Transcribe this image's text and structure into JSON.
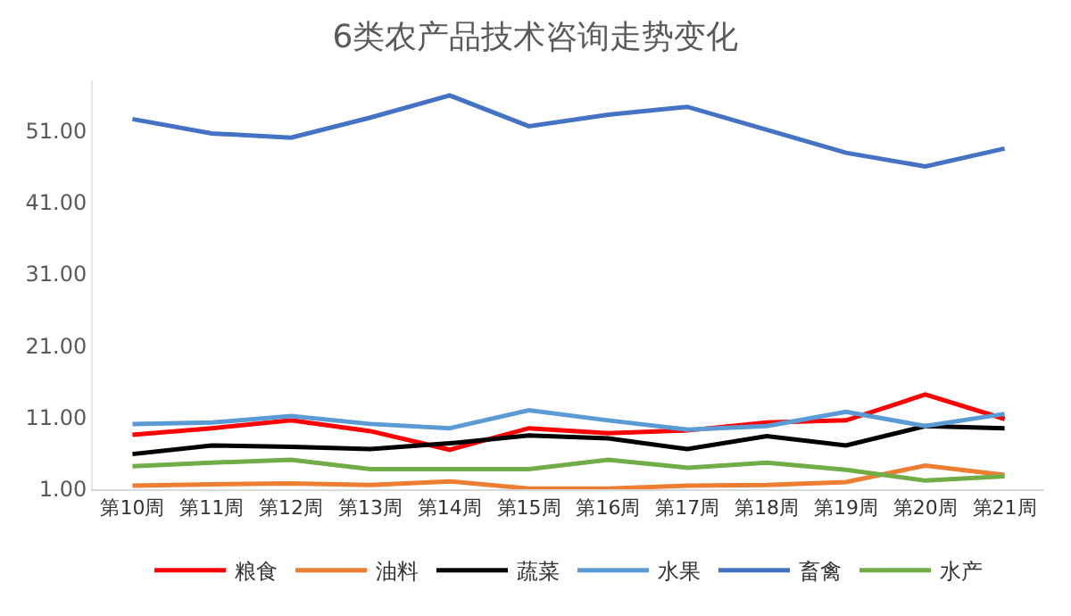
{
  "chart_data": {
    "type": "line",
    "title": "6类农产品技术咨询走势变化",
    "categories": [
      "第10周",
      "第11周",
      "第12周",
      "第13周",
      "第14周",
      "第15周",
      "第16周",
      "第17周",
      "第18周",
      "第19周",
      "第20周",
      "第21周"
    ],
    "series": [
      {
        "name": "粮食",
        "color": "#ff0000",
        "values": [
          8.6,
          9.5,
          10.6,
          9.1,
          6.5,
          9.5,
          8.8,
          9.2,
          10.3,
          10.6,
          14.2,
          10.8
        ]
      },
      {
        "name": "油料",
        "color": "#ed7d31",
        "values": [
          1.5,
          1.7,
          1.8,
          1.6,
          2.1,
          1.1,
          1.1,
          1.5,
          1.6,
          2.0,
          4.3,
          3.0
        ]
      },
      {
        "name": "蔬菜",
        "color": "#000000",
        "values": [
          5.9,
          7.1,
          6.9,
          6.6,
          7.4,
          8.5,
          8.1,
          6.6,
          8.4,
          7.1,
          9.8,
          9.5
        ]
      },
      {
        "name": "水果",
        "color": "#5b9bd5",
        "values": [
          10.1,
          10.3,
          11.2,
          10.1,
          9.5,
          12.0,
          10.6,
          9.3,
          9.8,
          11.8,
          9.8,
          11.5
        ]
      },
      {
        "name": "畜禽",
        "color": "#4472c4",
        "values": [
          52.6,
          50.6,
          50.0,
          52.8,
          55.9,
          51.6,
          53.2,
          54.3,
          51.1,
          47.9,
          46.0,
          48.5
        ]
      },
      {
        "name": "水产",
        "color": "#70ad47",
        "values": [
          4.2,
          4.7,
          5.1,
          3.8,
          3.8,
          3.8,
          5.1,
          4.0,
          4.7,
          3.7,
          2.2,
          2.8
        ]
      }
    ],
    "ylim": [
      1,
      58
    ],
    "yticks": [
      {
        "value": 1,
        "label": "1.00"
      },
      {
        "value": 11,
        "label": "11.00"
      },
      {
        "value": 21,
        "label": "21.00"
      },
      {
        "value": 31,
        "label": "31.00"
      },
      {
        "value": 41,
        "label": "41.00"
      },
      {
        "value": 51,
        "label": "51.00"
      }
    ],
    "grid": false,
    "legend": "bottom",
    "marker": "none",
    "line_style": "solid"
  }
}
